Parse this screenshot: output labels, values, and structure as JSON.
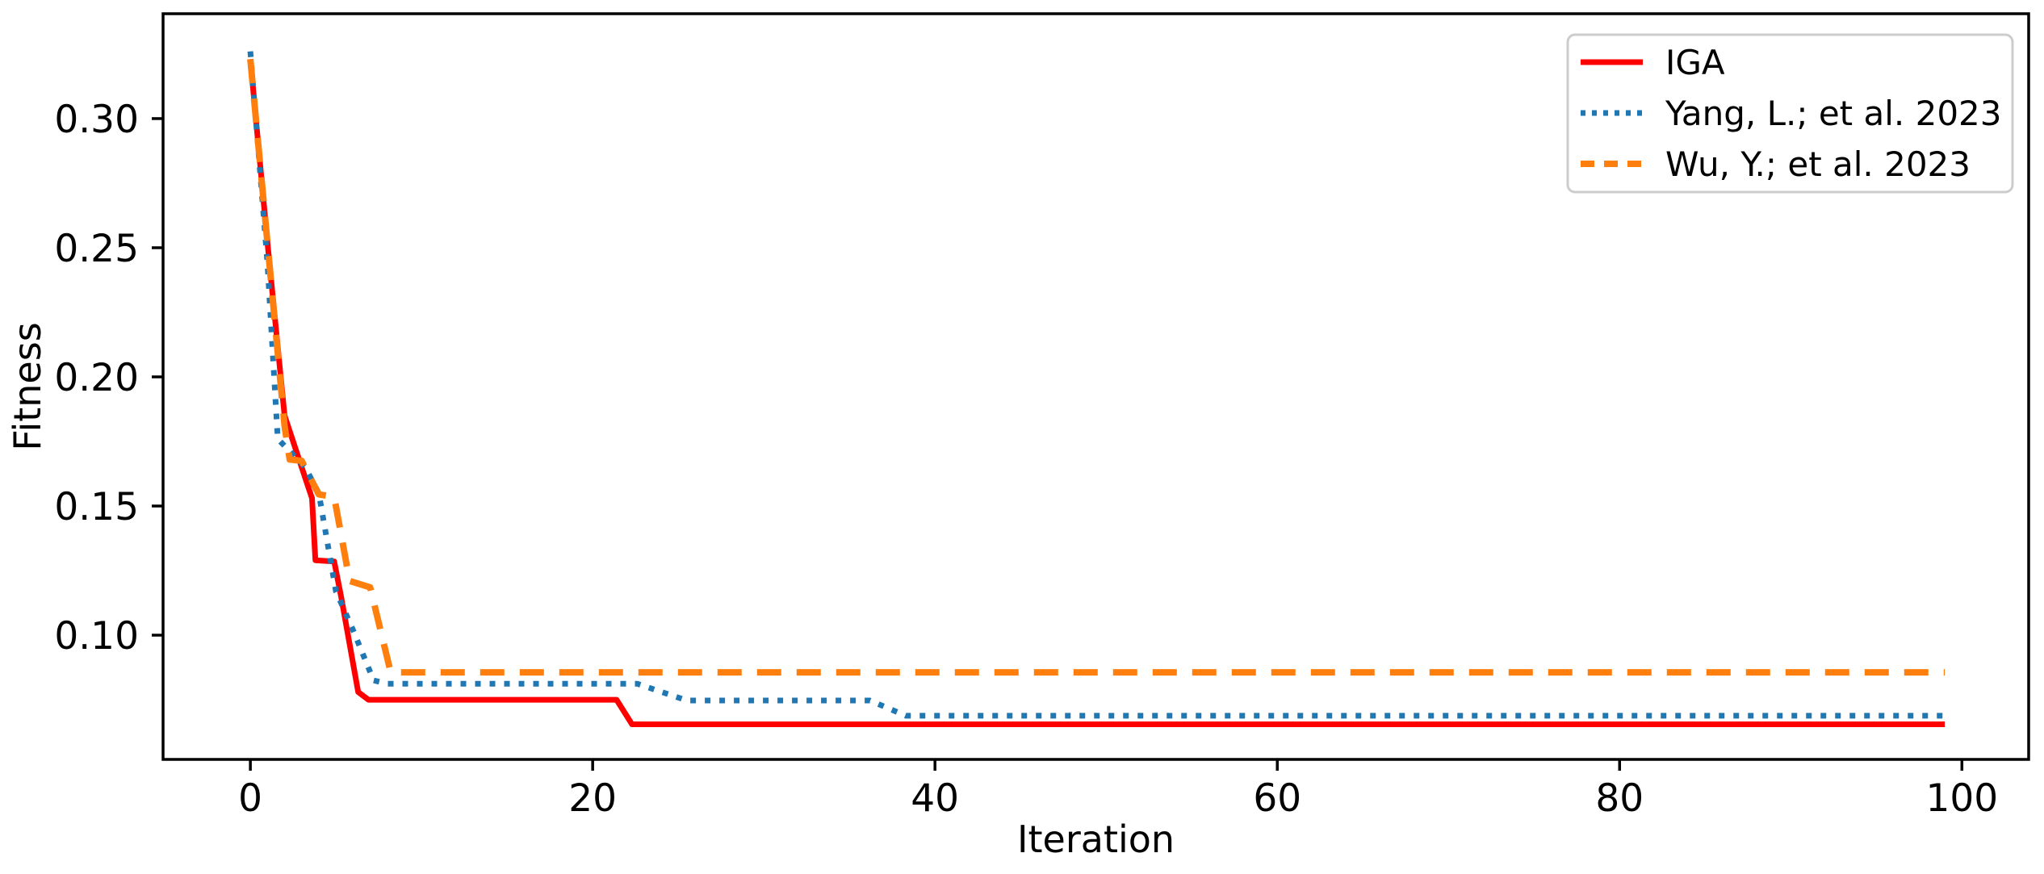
{
  "figure": {
    "background": "#ffffff",
    "frame_color": "#000000"
  },
  "chart_data": {
    "type": "line",
    "title": "",
    "xlabel": "Iteration",
    "ylabel": "Fitness",
    "xlim": [
      -5.1,
      103.9
    ],
    "ylim": [
      0.0519,
      0.3406
    ],
    "x_ticks": [
      0,
      20,
      40,
      60,
      80,
      100
    ],
    "x_tick_labels": [
      "0",
      "20",
      "40",
      "60",
      "80",
      "100"
    ],
    "y_ticks": [
      0.1,
      0.15,
      0.2,
      0.25,
      0.3
    ],
    "y_tick_labels": [
      "0.10",
      "0.15",
      "0.20",
      "0.25",
      "0.30"
    ],
    "grid": false,
    "legend_position": "upper right",
    "series": [
      {
        "id": "iga",
        "name": "IGA",
        "color": "#ff0000",
        "line_style": "solid",
        "points": [
          [
            0,
            0.323
          ],
          [
            1,
            0.252
          ],
          [
            2,
            0.185
          ],
          [
            3,
            0.165
          ],
          [
            3.6,
            0.153
          ],
          [
            3.8,
            0.129
          ],
          [
            4.9,
            0.1285
          ],
          [
            5.3,
            0.115
          ],
          [
            6.3,
            0.078
          ],
          [
            6.9,
            0.075
          ],
          [
            21.4,
            0.075
          ],
          [
            22.3,
            0.0655
          ],
          [
            99,
            0.0655
          ]
        ]
      },
      {
        "id": "yang",
        "name": "Yang, L.; et al. 2023",
        "color": "#1f77b4",
        "line_style": "dotted",
        "points": [
          [
            0,
            0.326
          ],
          [
            1,
            0.244
          ],
          [
            1.6,
            0.176
          ],
          [
            3.2,
            0.165
          ],
          [
            4,
            0.155
          ],
          [
            5,
            0.117
          ],
          [
            6,
            0.102
          ],
          [
            7.2,
            0.0825
          ],
          [
            8,
            0.0812
          ],
          [
            22.6,
            0.0812
          ],
          [
            25.5,
            0.0747
          ],
          [
            36.2,
            0.0747
          ],
          [
            38.3,
            0.0688
          ],
          [
            99,
            0.0688
          ]
        ]
      },
      {
        "id": "wu",
        "name": "Wu, Y.; et al. 2023",
        "color": "#ff7f0e",
        "line_style": "dashed",
        "points": [
          [
            0,
            0.323
          ],
          [
            1,
            0.252
          ],
          [
            2,
            0.181
          ],
          [
            2.3,
            0.168
          ],
          [
            3,
            0.1675
          ],
          [
            4,
            0.1545
          ],
          [
            4.9,
            0.1535
          ],
          [
            5.8,
            0.121
          ],
          [
            7,
            0.1185
          ],
          [
            8.2,
            0.0856
          ],
          [
            99,
            0.0856
          ]
        ]
      }
    ]
  }
}
